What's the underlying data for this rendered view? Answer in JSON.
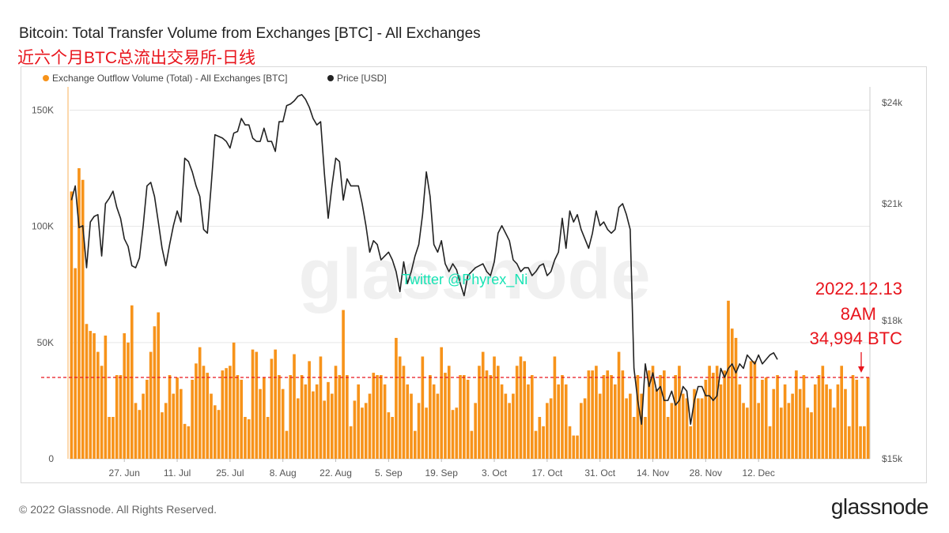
{
  "header": {
    "title": "Bitcoin: Total Transfer Volume from Exchanges [BTC] - All Exchanges",
    "subtitle": "近六个月BTC总流出交易所-日线"
  },
  "footer": {
    "copyright": "© 2022 Glassnode. All Rights Reserved.",
    "brand": "glassnode"
  },
  "chart_data": {
    "type": "bar",
    "title": "Bitcoin: Total Transfer Volume from Exchanges [BTC] - All Exchanges",
    "legend": {
      "placement": "top-left",
      "entries": [
        {
          "name": "Exchange Outflow Volume (Total) - All Exchanges [BTC]",
          "color": "#f7931a"
        },
        {
          "name": "Price [USD]",
          "color": "#222222"
        }
      ]
    },
    "x_tick_labels": [
      "27. Jun",
      "11. Jul",
      "25. Jul",
      "8. Aug",
      "22. Aug",
      "5. Sep",
      "19. Sep",
      "3. Oct",
      "17. Oct",
      "31. Oct",
      "14. Nov",
      "28. Nov",
      "12. Dec"
    ],
    "x_tick_day_index": [
      14,
      28,
      42,
      56,
      70,
      84,
      98,
      112,
      126,
      140,
      154,
      168,
      182
    ],
    "y_left": {
      "ticks": [
        0,
        50000,
        100000,
        150000
      ],
      "tick_labels": [
        "0",
        "50K",
        "100K",
        "150K"
      ],
      "range": [
        0,
        160000
      ]
    },
    "y_right": {
      "ticks": [
        15000,
        18000,
        21000,
        24000
      ],
      "tick_labels": [
        "$15k",
        "$18k",
        "$21k",
        "$24k"
      ],
      "range": [
        15000,
        24500
      ],
      "scale": "log"
    },
    "grid": true,
    "watermark": "glassnode",
    "annotation_text": "Twitter @Phyrex_Ni",
    "reference_line": {
      "value": 34994,
      "color": "#e8141c",
      "style": "dashed"
    },
    "callout": {
      "lines": [
        "2022.12.13",
        "8AM",
        "34,994 BTC"
      ],
      "color": "#e8141c"
    },
    "series": [
      {
        "name": "Exchange Outflow Volume (Total) - All Exchanges [BTC]",
        "type": "bar",
        "color": "#f7931a",
        "values": [
          115000,
          82000,
          125000,
          120000,
          58000,
          55000,
          54000,
          46000,
          40000,
          53000,
          18000,
          18000,
          36000,
          36000,
          54000,
          50000,
          66000,
          24000,
          21000,
          28000,
          34000,
          46000,
          57000,
          63000,
          20000,
          24000,
          36000,
          28000,
          35000,
          30000,
          15000,
          14000,
          34000,
          41000,
          48000,
          40000,
          37000,
          28000,
          23000,
          21000,
          38000,
          39000,
          40000,
          50000,
          36000,
          34000,
          18000,
          17000,
          47000,
          46000,
          30000,
          35000,
          18000,
          43000,
          47000,
          36000,
          30000,
          12000,
          36000,
          45000,
          26000,
          36000,
          32000,
          42000,
          29000,
          32000,
          44000,
          25000,
          33000,
          28000,
          40000,
          36000,
          64000,
          36000,
          14000,
          25000,
          32000,
          22000,
          24000,
          28000,
          37000,
          36000,
          36000,
          32000,
          20000,
          18000,
          52000,
          44000,
          40000,
          32000,
          28000,
          12000,
          24000,
          44000,
          22000,
          36000,
          32000,
          28000,
          48000,
          37000,
          40000,
          21000,
          22000,
          36000,
          36000,
          34000,
          12000,
          24000,
          40000,
          46000,
          38000,
          36000,
          44000,
          40000,
          32000,
          28000,
          24000,
          28000,
          40000,
          44000,
          42000,
          32000,
          36000,
          12000,
          18000,
          14000,
          24000,
          26000,
          44000,
          32000,
          36000,
          32000,
          14000,
          10000,
          10000,
          24000,
          26000,
          38000,
          38000,
          40000,
          28000,
          36000,
          38000,
          36000,
          32000,
          46000,
          38000,
          26000,
          28000,
          18000,
          36000,
          28000,
          18000,
          38000,
          40000,
          30000,
          36000,
          38000,
          18000,
          24000,
          36000,
          40000,
          28000,
          26000,
          14000,
          30000,
          26000,
          26000,
          34000,
          40000,
          37000,
          40000,
          32000,
          38000,
          68000,
          56000,
          52000,
          32000,
          24000,
          22000,
          42000,
          42000,
          24000,
          34000,
          35000,
          14000,
          30000,
          36000,
          22000,
          32000,
          24000,
          28000,
          38000,
          30000,
          36000,
          22000,
          20000,
          32000,
          36000,
          40000,
          32000,
          30000,
          22000,
          32000,
          40000,
          30000,
          14000,
          36000,
          34000,
          14000,
          14000,
          34994
        ]
      },
      {
        "name": "Price [USD]",
        "type": "line",
        "color": "#222222",
        "values": [
          21100,
          21500,
          20350,
          20400,
          19300,
          20500,
          20650,
          20700,
          19600,
          21000,
          21150,
          21350,
          20900,
          20600,
          20050,
          19850,
          19350,
          19300,
          19550,
          20400,
          21500,
          21600,
          21200,
          20500,
          19800,
          19350,
          19900,
          20400,
          20800,
          20500,
          22300,
          22200,
          21900,
          21500,
          21200,
          20300,
          20200,
          21500,
          23000,
          22950,
          22900,
          22800,
          22600,
          23050,
          23100,
          23500,
          23300,
          23300,
          22900,
          22800,
          22800,
          23200,
          22800,
          22800,
          22500,
          23400,
          23400,
          23900,
          23950,
          24050,
          24200,
          24250,
          24100,
          23850,
          23500,
          23300,
          23400,
          21850,
          20600,
          21500,
          22300,
          22200,
          21100,
          21700,
          21500,
          21500,
          21500,
          21000,
          20400,
          19700,
          20000,
          19900,
          19500,
          19600,
          19700,
          19500,
          19200,
          18700,
          19450,
          18900,
          19200,
          19600,
          19900,
          20700,
          21900,
          21200,
          19900,
          19700,
          20000,
          19400,
          19200,
          19400,
          19250,
          18900,
          18600,
          19100,
          19200,
          19300,
          19350,
          19400,
          19200,
          19100,
          19450,
          20200,
          20400,
          20200,
          20000,
          19500,
          19400,
          19200,
          19300,
          19300,
          19100,
          19200,
          19350,
          19400,
          19100,
          19200,
          19500,
          19700,
          20600,
          19800,
          20800,
          20500,
          20700,
          20300,
          20050,
          19800,
          20200,
          20800,
          20400,
          20500,
          20300,
          20200,
          20300,
          20900,
          21000,
          20700,
          20300,
          16900,
          16200,
          15700,
          17000,
          16500,
          16800,
          16400,
          16500,
          16200,
          16200,
          16400,
          16100,
          16200,
          16500,
          16400,
          15700,
          16200,
          16500,
          16500,
          16300,
          16300,
          16200,
          16300,
          16900,
          16700,
          16900,
          17000,
          16800,
          17000,
          16900,
          17200,
          17100,
          17000,
          17200,
          17000,
          17100,
          17200,
          17250,
          17100
        ]
      }
    ]
  }
}
